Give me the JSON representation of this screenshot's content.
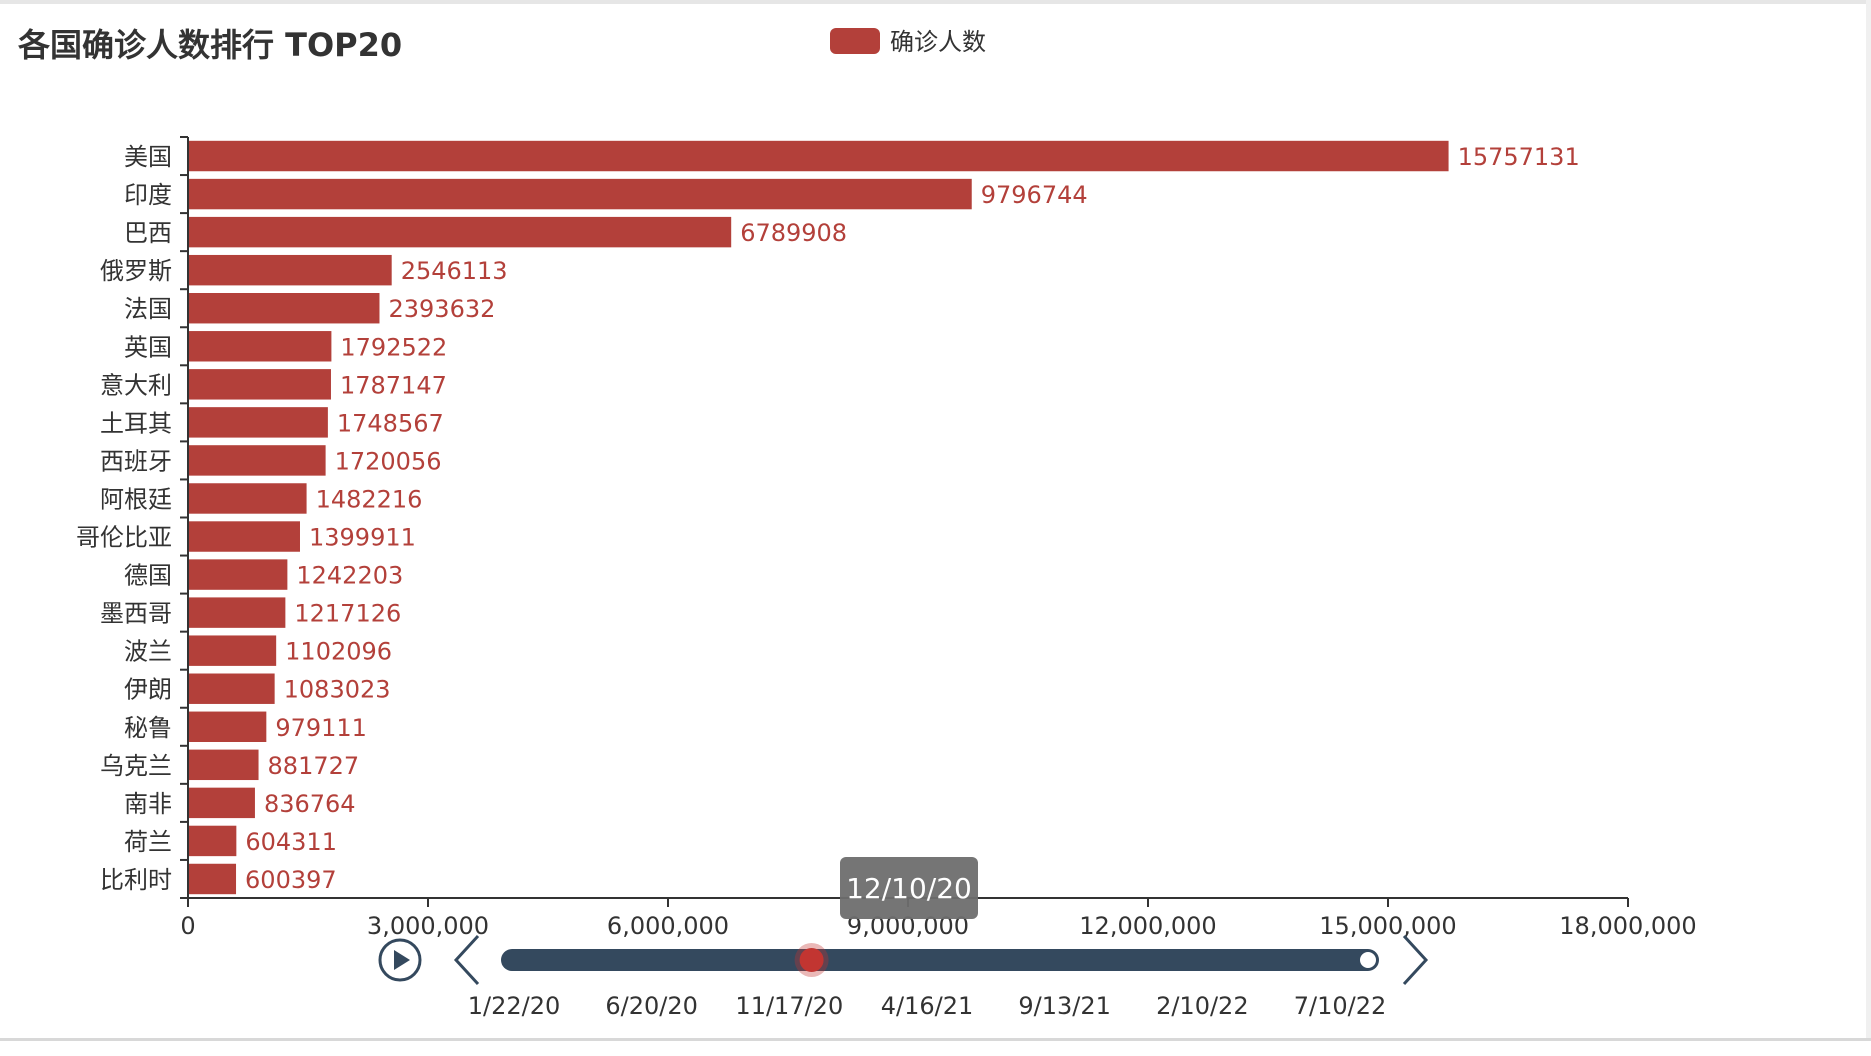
{
  "title": "各国确诊人数排行 TOP20",
  "legend": {
    "label": "确诊人数",
    "position": "top-center"
  },
  "colors": {
    "bar": "#b3403a",
    "axis": "#333333",
    "label": "#b3403a",
    "slider": "#34495e",
    "handle": "#c23531",
    "tooltip": "#6e6e6e"
  },
  "chart_data": {
    "type": "bar",
    "orientation": "horizontal",
    "title": "各国确诊人数排行 TOP20",
    "categories": [
      "美国",
      "印度",
      "巴西",
      "俄罗斯",
      "法国",
      "英国",
      "意大利",
      "土耳其",
      "西班牙",
      "阿根廷",
      "哥伦比亚",
      "德国",
      "墨西哥",
      "波兰",
      "伊朗",
      "秘鲁",
      "乌克兰",
      "南非",
      "荷兰",
      "比利时"
    ],
    "series": [
      {
        "name": "确诊人数",
        "values": [
          15757131,
          9796744,
          6789908,
          2546113,
          2393632,
          1792522,
          1787147,
          1748567,
          1720056,
          1482216,
          1399911,
          1242203,
          1217126,
          1102096,
          1083023,
          979111,
          881727,
          836764,
          604311,
          600397
        ]
      }
    ],
    "value_labels": [
      "15757131",
      "9796744",
      "6789908",
      "2546113",
      "2393632",
      "1792522",
      "1787147",
      "1748567",
      "1720056",
      "1482216",
      "1399911",
      "1242203",
      "1217126",
      "1102096",
      "1083023",
      "979111",
      "881727",
      "836764",
      "604311",
      "600397"
    ],
    "xlim": [
      0,
      18000000
    ],
    "xticks": [
      0,
      3000000,
      6000000,
      9000000,
      12000000,
      15000000,
      18000000
    ],
    "xtick_labels": [
      "0",
      "3,000,000",
      "6,000,000",
      "9,000,000",
      "12,000,000",
      "15,000,000",
      "18,000,000"
    ],
    "grid": false
  },
  "timeline": {
    "tick_labels": [
      "1/22/20",
      "6/20/20",
      "11/17/20",
      "4/16/21",
      "9/13/21",
      "2/10/22",
      "7/10/22"
    ],
    "current_label": "12/10/20",
    "progress": 0.35,
    "play_icon": "play-icon",
    "prev_icon": "chevron-left-icon",
    "next_icon": "chevron-right-icon"
  }
}
